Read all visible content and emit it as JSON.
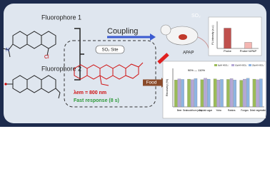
{
  "fluorophores": [
    "Fluorophore 1",
    "Fluorophore 2"
  ],
  "fluorophore_1_atoms": [
    "N",
    "Cl"
  ],
  "arrow_label": "Coupling",
  "probe": {
    "site": "SO₂ Site",
    "emission": "λem = 800 nm",
    "response": "Fast response (8 s)"
  },
  "food_label": "Food",
  "mouse": {
    "analyte": "SO₂",
    "drug": "APAP"
  },
  "cell_chart": {
    "type": "bar",
    "ylabel": "FL Intensity (a.u.)",
    "categories": [
      "Probe",
      "Probe+APAP"
    ],
    "values": [
      3.0,
      0.9
    ],
    "colors": [
      "#c0504d",
      "#f4b6b2"
    ],
    "ylim": [
      0,
      4
    ]
  },
  "food_chart": {
    "type": "bar",
    "ylabel": "Recovery (%)",
    "annotation": "90% — 110%",
    "categories": [
      "Beer",
      "Seabuckthorn juice",
      "Crystal sugar",
      "Yuba",
      "Raisins",
      "Fungus",
      "Dried vegetable"
    ],
    "series": [
      {
        "name": "0μM HSO₃⁻",
        "color": "#9bbb59",
        "values": [
          98,
          101,
          99,
          102,
          100,
          97,
          101
        ]
      },
      {
        "name": "10μM HSO₃⁻",
        "color": "#b4a7d6",
        "values": [
          102,
          99,
          104,
          98,
          103,
          101,
          99
        ]
      },
      {
        "name": "20μM HSO₃⁻",
        "color": "#8db4e2",
        "values": [
          100,
          103,
          101,
          100,
          98,
          104,
          102
        ]
      }
    ],
    "ylim": [
      0,
      140
    ]
  }
}
